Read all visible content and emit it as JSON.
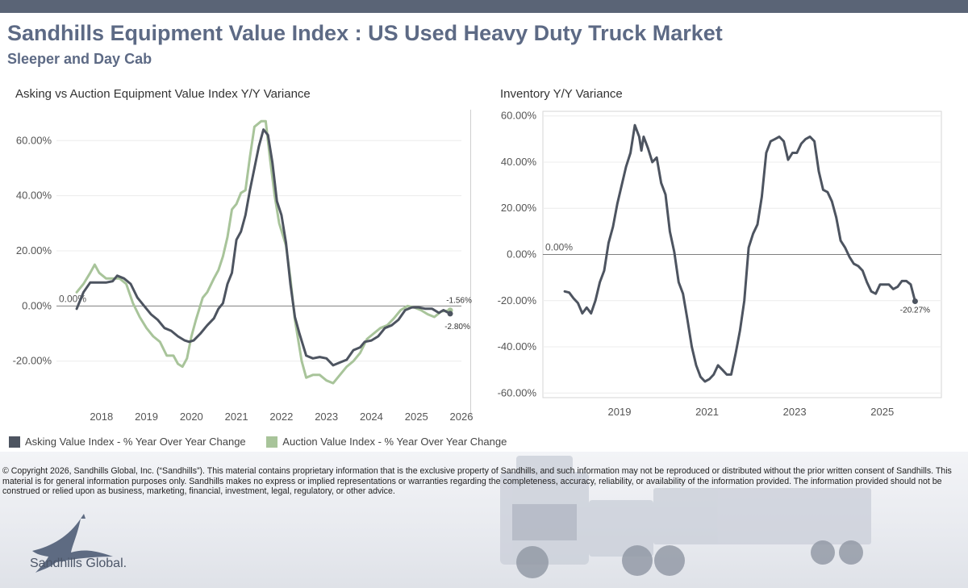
{
  "header": {
    "title": "Sandhills Equipment Value Index : US Used Heavy Duty Truck Market",
    "subtitle": "Sleeper and Day Cab"
  },
  "colors": {
    "asking": "#4d5460",
    "auction": "#a8c49a",
    "zero_line": "#7f7f7f",
    "topbar": "#5a6476",
    "title": "#5d6a85"
  },
  "chart_data": [
    {
      "type": "line",
      "title": "Asking vs Auction Equipment Value Index Y/Y Variance",
      "x_ticks": [
        "2018",
        "2019",
        "2020",
        "2021",
        "2022",
        "2023",
        "2024",
        "2025",
        "2026"
      ],
      "y_ticks": [
        "60.00%",
        "40.00%",
        "20.00%",
        "0.00%",
        "-20.00%"
      ],
      "ylim": [
        -35,
        75
      ],
      "zero_label": "0.00%",
      "grid": true,
      "legend_position": "bottom-left",
      "series": [
        {
          "name": "Asking Value Index - % Year Over Year Change",
          "color": "#4d5460",
          "end_label": "-2.80%",
          "points": [
            [
              2017.45,
              -1
            ],
            [
              2017.6,
              5
            ],
            [
              2017.75,
              8.5
            ],
            [
              2017.9,
              8.5
            ],
            [
              2018.1,
              8.5
            ],
            [
              2018.25,
              9
            ],
            [
              2018.35,
              11
            ],
            [
              2018.5,
              10
            ],
            [
              2018.65,
              8
            ],
            [
              2018.8,
              3
            ],
            [
              2018.95,
              0
            ],
            [
              2019.1,
              -3
            ],
            [
              2019.25,
              -5
            ],
            [
              2019.4,
              -8
            ],
            [
              2019.55,
              -9
            ],
            [
              2019.7,
              -11
            ],
            [
              2019.85,
              -12.5
            ],
            [
              2019.95,
              -13
            ],
            [
              2020.05,
              -12.5
            ],
            [
              2020.2,
              -10
            ],
            [
              2020.35,
              -7
            ],
            [
              2020.5,
              -4.5
            ],
            [
              2020.6,
              -1
            ],
            [
              2020.7,
              1
            ],
            [
              2020.8,
              8
            ],
            [
              2020.9,
              12
            ],
            [
              2021.0,
              24
            ],
            [
              2021.1,
              27
            ],
            [
              2021.2,
              33
            ],
            [
              2021.3,
              42
            ],
            [
              2021.4,
              50
            ],
            [
              2021.5,
              58
            ],
            [
              2021.6,
              64
            ],
            [
              2021.7,
              62
            ],
            [
              2021.8,
              52
            ],
            [
              2021.9,
              38
            ],
            [
              2022.0,
              33
            ],
            [
              2022.1,
              23
            ],
            [
              2022.2,
              8
            ],
            [
              2022.3,
              -4
            ],
            [
              2022.4,
              -10
            ],
            [
              2022.55,
              -18
            ],
            [
              2022.7,
              -19
            ],
            [
              2022.85,
              -18.5
            ],
            [
              2023.0,
              -19
            ],
            [
              2023.15,
              -21.5
            ],
            [
              2023.3,
              -20.5
            ],
            [
              2023.45,
              -19.5
            ],
            [
              2023.6,
              -16
            ],
            [
              2023.75,
              -15
            ],
            [
              2023.85,
              -13
            ],
            [
              2024.0,
              -12.5
            ],
            [
              2024.15,
              -11
            ],
            [
              2024.3,
              -8
            ],
            [
              2024.45,
              -7
            ],
            [
              2024.6,
              -5
            ],
            [
              2024.75,
              -1.5
            ],
            [
              2024.9,
              -0.5
            ],
            [
              2025.05,
              -0.5
            ],
            [
              2025.2,
              -1
            ],
            [
              2025.35,
              -1
            ],
            [
              2025.5,
              -2.5
            ],
            [
              2025.6,
              -1.5
            ],
            [
              2025.75,
              -2.8
            ]
          ]
        },
        {
          "name": "Auction Value Index - % Year Over Year Change",
          "color": "#a8c49a",
          "end_label": "-1.56%",
          "points": [
            [
              2017.45,
              5
            ],
            [
              2017.6,
              8
            ],
            [
              2017.75,
              12
            ],
            [
              2017.85,
              15
            ],
            [
              2017.95,
              12
            ],
            [
              2018.1,
              10
            ],
            [
              2018.25,
              10
            ],
            [
              2018.4,
              10
            ],
            [
              2018.55,
              8
            ],
            [
              2018.7,
              1
            ],
            [
              2018.85,
              -4
            ],
            [
              2019.0,
              -8
            ],
            [
              2019.15,
              -11
            ],
            [
              2019.3,
              -13
            ],
            [
              2019.45,
              -18
            ],
            [
              2019.6,
              -18
            ],
            [
              2019.7,
              -21
            ],
            [
              2019.8,
              -22
            ],
            [
              2019.9,
              -19
            ],
            [
              2020.0,
              -11
            ],
            [
              2020.1,
              -5
            ],
            [
              2020.25,
              3
            ],
            [
              2020.35,
              5
            ],
            [
              2020.5,
              10
            ],
            [
              2020.6,
              13
            ],
            [
              2020.7,
              18
            ],
            [
              2020.8,
              25
            ],
            [
              2020.9,
              35
            ],
            [
              2021.0,
              37
            ],
            [
              2021.1,
              41
            ],
            [
              2021.2,
              42
            ],
            [
              2021.3,
              54
            ],
            [
              2021.4,
              65
            ],
            [
              2021.55,
              67
            ],
            [
              2021.65,
              67
            ],
            [
              2021.75,
              53
            ],
            [
              2021.85,
              40
            ],
            [
              2021.95,
              30
            ],
            [
              2022.1,
              22
            ],
            [
              2022.2,
              10
            ],
            [
              2022.3,
              -5
            ],
            [
              2022.45,
              -20
            ],
            [
              2022.55,
              -26
            ],
            [
              2022.7,
              -25
            ],
            [
              2022.85,
              -25
            ],
            [
              2023.0,
              -27
            ],
            [
              2023.15,
              -28
            ],
            [
              2023.3,
              -25
            ],
            [
              2023.45,
              -22
            ],
            [
              2023.6,
              -20
            ],
            [
              2023.75,
              -17
            ],
            [
              2023.9,
              -12
            ],
            [
              2024.05,
              -10
            ],
            [
              2024.2,
              -8
            ],
            [
              2024.35,
              -7
            ],
            [
              2024.5,
              -4.5
            ],
            [
              2024.65,
              -1.5
            ],
            [
              2024.8,
              0
            ],
            [
              2024.95,
              -0.5
            ],
            [
              2025.1,
              -1.5
            ],
            [
              2025.25,
              -3
            ],
            [
              2025.4,
              -4
            ],
            [
              2025.55,
              -2
            ],
            [
              2025.75,
              -1.56
            ]
          ]
        }
      ]
    },
    {
      "type": "line",
      "title": "Inventory Y/Y Variance",
      "x_ticks": [
        "2019",
        "2021",
        "2023",
        "2025"
      ],
      "y_ticks": [
        "60.00%",
        "40.00%",
        "20.00%",
        "0.00%",
        "-20.00%",
        "-40.00%",
        "-60.00%"
      ],
      "ylim": [
        -62,
        62
      ],
      "zero_label": "0.00%",
      "grid": true,
      "series": [
        {
          "name": "",
          "color": "#4d5460",
          "end_label": "-20.27%",
          "points": [
            [
              2017.75,
              -16
            ],
            [
              2017.85,
              -16.5
            ],
            [
              2017.95,
              -19
            ],
            [
              2018.05,
              -21
            ],
            [
              2018.15,
              -25.5
            ],
            [
              2018.25,
              -23
            ],
            [
              2018.35,
              -25.5
            ],
            [
              2018.45,
              -20
            ],
            [
              2018.55,
              -12
            ],
            [
              2018.65,
              -7
            ],
            [
              2018.75,
              5
            ],
            [
              2018.85,
              12
            ],
            [
              2018.95,
              22
            ],
            [
              2019.05,
              30
            ],
            [
              2019.15,
              38
            ],
            [
              2019.25,
              44
            ],
            [
              2019.35,
              56
            ],
            [
              2019.45,
              51
            ],
            [
              2019.5,
              45
            ],
            [
              2019.55,
              51
            ],
            [
              2019.65,
              46
            ],
            [
              2019.75,
              40
            ],
            [
              2019.85,
              42
            ],
            [
              2019.95,
              31
            ],
            [
              2020.05,
              26
            ],
            [
              2020.15,
              10
            ],
            [
              2020.25,
              1
            ],
            [
              2020.35,
              -12
            ],
            [
              2020.45,
              -17
            ],
            [
              2020.55,
              -28
            ],
            [
              2020.65,
              -40
            ],
            [
              2020.75,
              -48
            ],
            [
              2020.85,
              -53
            ],
            [
              2020.95,
              -55
            ],
            [
              2021.05,
              -54
            ],
            [
              2021.15,
              -52
            ],
            [
              2021.25,
              -48
            ],
            [
              2021.35,
              -50
            ],
            [
              2021.45,
              -52
            ],
            [
              2021.55,
              -52
            ],
            [
              2021.65,
              -43
            ],
            [
              2021.75,
              -33
            ],
            [
              2021.85,
              -20
            ],
            [
              2021.95,
              3
            ],
            [
              2022.05,
              9
            ],
            [
              2022.15,
              13
            ],
            [
              2022.25,
              25
            ],
            [
              2022.35,
              44
            ],
            [
              2022.45,
              49
            ],
            [
              2022.55,
              50
            ],
            [
              2022.65,
              51
            ],
            [
              2022.75,
              49
            ],
            [
              2022.85,
              41
            ],
            [
              2022.95,
              44
            ],
            [
              2023.05,
              44
            ],
            [
              2023.15,
              48
            ],
            [
              2023.25,
              50
            ],
            [
              2023.35,
              51
            ],
            [
              2023.45,
              49
            ],
            [
              2023.55,
              36
            ],
            [
              2023.65,
              28
            ],
            [
              2023.75,
              27
            ],
            [
              2023.85,
              23
            ],
            [
              2023.95,
              16
            ],
            [
              2024.05,
              6
            ],
            [
              2024.15,
              3
            ],
            [
              2024.25,
              -1
            ],
            [
              2024.35,
              -4
            ],
            [
              2024.45,
              -5
            ],
            [
              2024.55,
              -7
            ],
            [
              2024.65,
              -12
            ],
            [
              2024.75,
              -16
            ],
            [
              2024.85,
              -17
            ],
            [
              2024.95,
              -13
            ],
            [
              2025.05,
              -13
            ],
            [
              2025.15,
              -13
            ],
            [
              2025.25,
              -15
            ],
            [
              2025.35,
              -14
            ],
            [
              2025.45,
              -11.5
            ],
            [
              2025.55,
              -11.5
            ],
            [
              2025.65,
              -13
            ],
            [
              2025.75,
              -20.27
            ]
          ]
        }
      ]
    }
  ],
  "legend": {
    "asking_label": "Asking Value Index - % Year Over Year Change",
    "auction_label": "Auction Value Index - % Year Over Year Change"
  },
  "footer": {
    "disclaimer": "© Copyright 2026, Sandhills Global, Inc. (“Sandhills”). This material contains proprietary information that is the exclusive property of Sandhills, and such information may not be reproduced or distributed without the prior written consent of Sandhills. This material is for general information purposes only. Sandhills makes no express or implied representations or warranties regarding the completeness, accuracy, reliability, or availability of the information provided. The information provided should not be construed or relied upon as business, marketing, financial, investment, legal, regulatory, or other advice.",
    "logo_text": "Sandhills Global."
  }
}
